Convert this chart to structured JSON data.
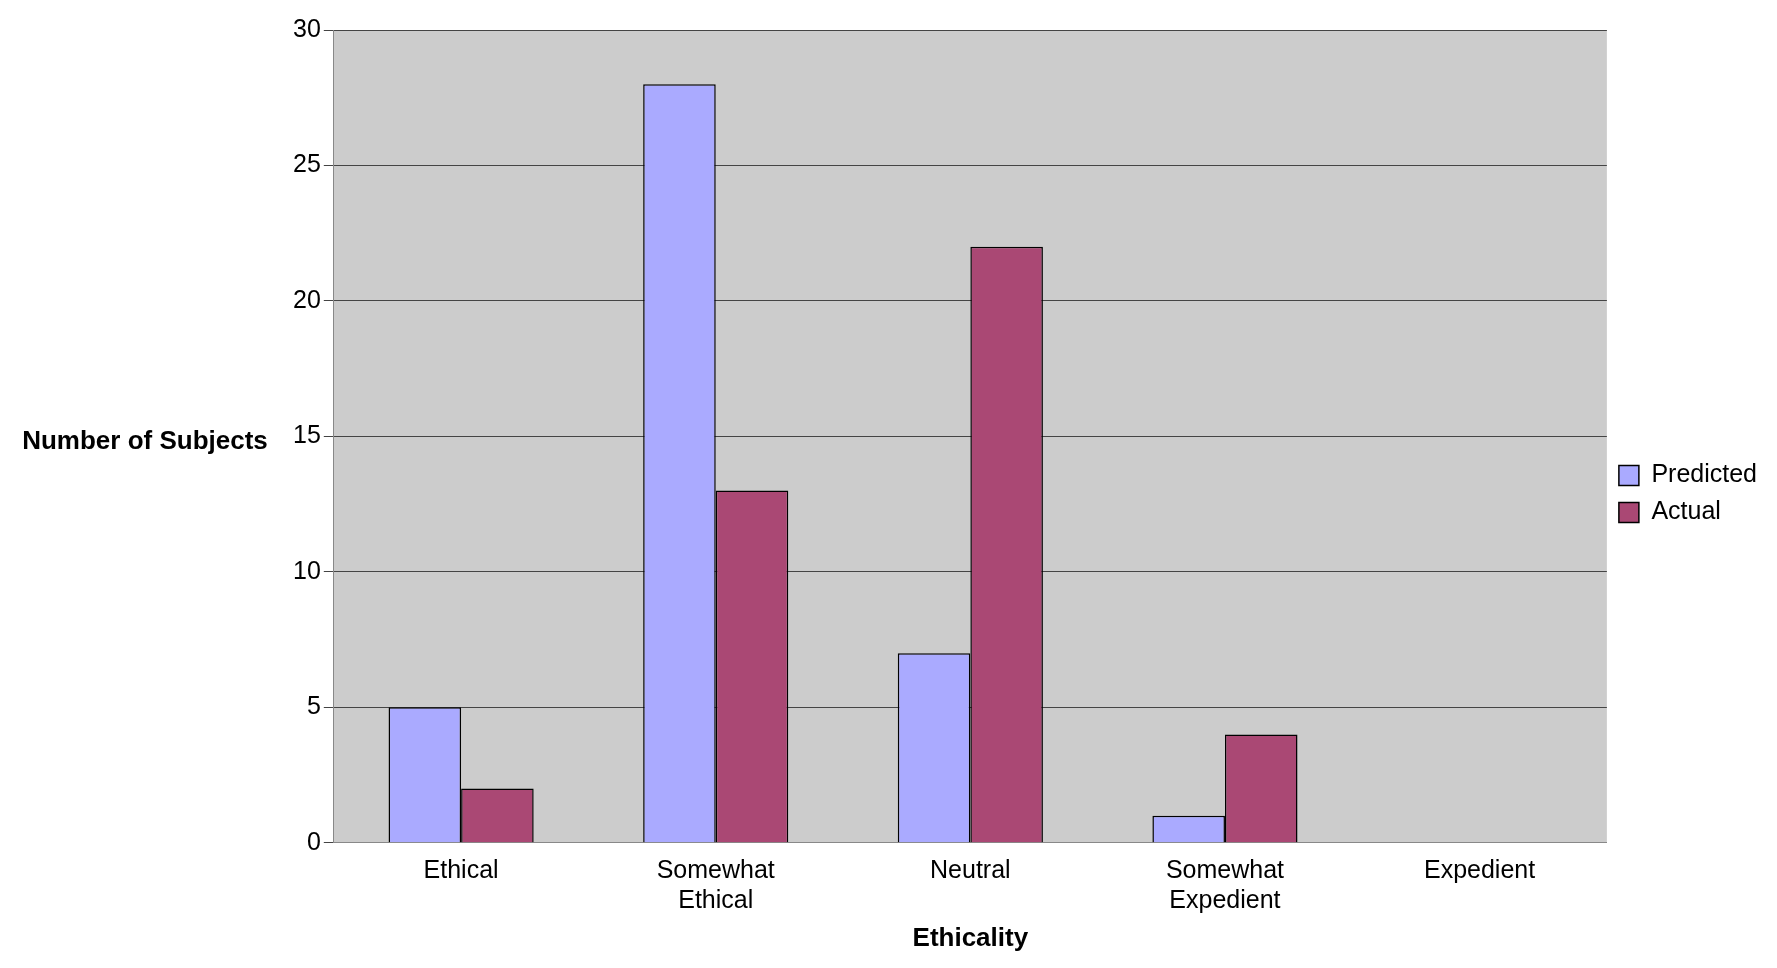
{
  "chart_data": {
    "type": "bar",
    "xlabel": "Ethicality",
    "ylabel": "Number of Subjects",
    "categories": [
      "Ethical",
      "Somewhat Ethical",
      "Neutral",
      "Somewhat Expedient",
      "Expedient"
    ],
    "series": [
      {
        "name": "Predicted",
        "color": "#aaaaff",
        "values": [
          5,
          28,
          7,
          1,
          0
        ]
      },
      {
        "name": "Actual",
        "color": "#aa4874",
        "values": [
          2,
          13,
          22,
          4,
          0
        ]
      }
    ],
    "ylim": [
      0,
      30
    ],
    "yticks": [
      0,
      5,
      10,
      15,
      20,
      25,
      30
    ],
    "grid": "y",
    "legend": "right"
  }
}
